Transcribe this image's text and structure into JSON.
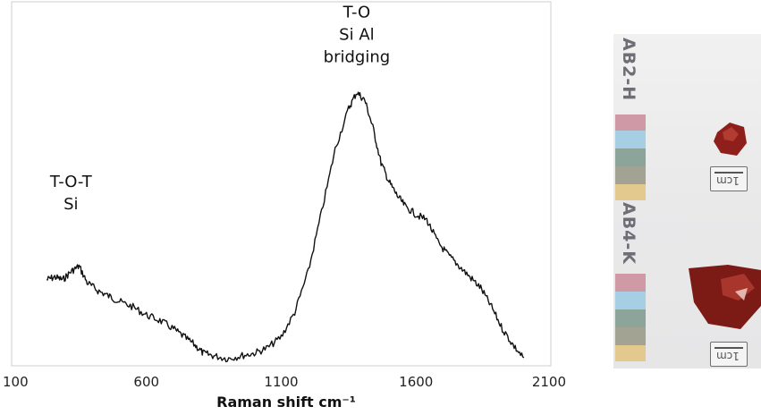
{
  "chart_data": {
    "type": "line",
    "title": "",
    "xlabel": "Raman shift cm⁻¹",
    "ylabel": "",
    "xlim": [
      100,
      2100
    ],
    "xticks": [
      100,
      600,
      1100,
      1600,
      2100
    ],
    "xtick_labels": [
      "100",
      "600",
      "1100",
      "1600",
      "2100"
    ],
    "yticks_visible": false,
    "grid": false,
    "legend": "none",
    "series": [
      {
        "values": [
          [
            230,
            0.3
          ],
          [
            260,
            0.31
          ],
          [
            290,
            0.3
          ],
          [
            320,
            0.33
          ],
          [
            350,
            0.35
          ],
          [
            380,
            0.29
          ],
          [
            420,
            0.26
          ],
          [
            460,
            0.24
          ],
          [
            500,
            0.22
          ],
          [
            550,
            0.2
          ],
          [
            600,
            0.17
          ],
          [
            650,
            0.15
          ],
          [
            700,
            0.12
          ],
          [
            740,
            0.09
          ],
          [
            780,
            0.06
          ],
          [
            810,
            0.03
          ],
          [
            850,
            0.02
          ],
          [
            900,
            0.01
          ],
          [
            950,
            0.02
          ],
          [
            1000,
            0.03
          ],
          [
            1050,
            0.05
          ],
          [
            1100,
            0.09
          ],
          [
            1150,
            0.18
          ],
          [
            1200,
            0.33
          ],
          [
            1250,
            0.55
          ],
          [
            1300,
            0.78
          ],
          [
            1350,
            0.93
          ],
          [
            1380,
            0.99
          ],
          [
            1410,
            0.96
          ],
          [
            1440,
            0.86
          ],
          [
            1470,
            0.73
          ],
          [
            1500,
            0.66
          ],
          [
            1530,
            0.61
          ],
          [
            1560,
            0.57
          ],
          [
            1600,
            0.54
          ],
          [
            1640,
            0.52
          ],
          [
            1680,
            0.44
          ],
          [
            1720,
            0.39
          ],
          [
            1760,
            0.35
          ],
          [
            1800,
            0.31
          ],
          [
            1840,
            0.27
          ],
          [
            1880,
            0.2
          ],
          [
            1920,
            0.12
          ],
          [
            1960,
            0.06
          ],
          [
            2000,
            0.01
          ]
        ]
      }
    ],
    "annotations": [
      {
        "lines": [
          "T-O-T",
          "Si"
        ],
        "x": 320,
        "y": 0.56
      },
      {
        "lines": [
          "T-O",
          "Si Al",
          "bridging"
        ],
        "x": 1380,
        "y": 1.1
      }
    ]
  },
  "photo": {
    "labels": [
      "AB2-H",
      "AB4-K"
    ],
    "ruler_text": "1cm"
  }
}
